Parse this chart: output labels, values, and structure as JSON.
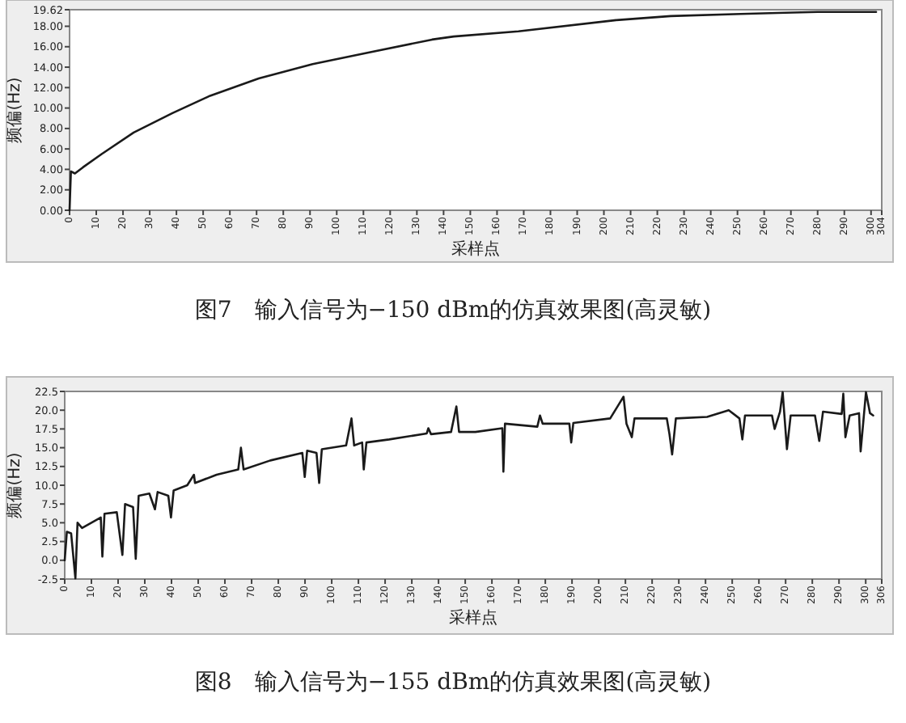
{
  "chart_data": [
    {
      "type": "line",
      "title": "图7　输入信号为−150 dBm的仿真效果图(高灵敏)",
      "xlabel": "采样点",
      "ylabel": "频偏(Hz)",
      "series": [
        {
          "color": "#1a1a1a",
          "x": [
            0,
            0.5,
            2,
            5,
            12,
            24,
            38.5,
            52.6,
            70.8,
            91,
            111.5,
            135.7,
            143.8,
            168,
            204.6,
            225,
            251.2,
            265,
            280,
            301.9
          ],
          "values": [
            0,
            3.8,
            3.6,
            4.2,
            5.5,
            7.6,
            9.5,
            11.2,
            12.9,
            14.3,
            15.4,
            16.7,
            17.0,
            17.5,
            18.6,
            19.0,
            19.2,
            19.3,
            19.4,
            19.4
          ]
        }
      ],
      "xlim": [
        0,
        304
      ],
      "xticks": [
        0,
        10,
        20,
        30,
        40,
        50,
        60,
        70,
        80,
        90,
        100,
        110,
        120,
        130,
        140,
        150,
        160,
        170,
        180,
        190,
        200,
        210,
        220,
        230,
        240,
        250,
        260,
        270,
        280,
        290,
        300,
        304
      ],
      "ylim": [
        0,
        19.62
      ],
      "yticks": [
        {
          "value": 0,
          "label": "0.00"
        },
        {
          "value": 2,
          "label": "2.00"
        },
        {
          "value": 4,
          "label": "4.00"
        },
        {
          "value": 6,
          "label": "6.00"
        },
        {
          "value": 8,
          "label": "8.00"
        },
        {
          "value": 10,
          "label": "10.00"
        },
        {
          "value": 12,
          "label": "12.00"
        },
        {
          "value": 14,
          "label": "14.00"
        },
        {
          "value": 16,
          "label": "16.00"
        },
        {
          "value": 18,
          "label": "18.00"
        },
        19.62
      ]
    },
    {
      "type": "line",
      "title": "图8　输入信号为−155 dBm的仿真效果图(高灵敏)",
      "xlabel": "采样点",
      "ylabel": "频偏(Hz)",
      "series": [
        {
          "color": "#1a1a1a",
          "x": [
            0,
            0.8,
            2.4,
            4,
            4.8,
            6.5,
            13.5,
            14.1,
            14.9,
            19.5,
            21.6,
            22.6,
            25.6,
            26.6,
            27.7,
            31.7,
            33.8,
            34.8,
            38.8,
            39.8,
            40.8,
            45.9,
            48.4,
            48.8,
            56.9,
            65,
            66,
            67,
            77,
            89,
            89.9,
            90.8,
            94.3,
            95.3,
            96.3,
            105.4,
            107.4,
            108.4,
            111.4,
            112,
            113,
            121.5,
            135.6,
            136.2,
            137.2,
            144.7,
            146.7,
            147.7,
            153.8,
            163.9,
            164.3,
            164.9,
            177,
            178,
            179,
            189,
            189.7,
            190.5,
            204.3,
            209.3,
            210.4,
            212.4,
            213.4,
            225.5,
            226.5,
            227.5,
            228.9,
            240.6,
            248.7,
            252.7,
            253.8,
            254.8,
            264.9,
            265.9,
            267.9,
            268.9,
            270.5,
            271.9,
            281,
            282.6,
            284,
            291,
            291.6,
            292.4,
            294,
            297.5,
            298.1,
            300.1,
            301.6,
            302.8
          ],
          "values": [
            0,
            3.8,
            3.6,
            -2.4,
            5.0,
            4.3,
            5.7,
            0.5,
            6.2,
            6.4,
            0.7,
            7.5,
            7.1,
            0.2,
            8.6,
            8.9,
            6.8,
            9.1,
            8.6,
            5.7,
            9.3,
            10.0,
            11.4,
            10.3,
            11.4,
            12.1,
            15.0,
            12.1,
            13.3,
            14.3,
            11.1,
            14.6,
            14.3,
            10.3,
            14.8,
            15.3,
            18.9,
            15.3,
            15.7,
            12.1,
            15.7,
            16.1,
            16.9,
            17.6,
            16.8,
            17.1,
            20.5,
            17.1,
            17.1,
            17.6,
            11.8,
            18.2,
            17.8,
            19.3,
            18.2,
            18.2,
            15.7,
            18.3,
            18.9,
            21.8,
            18.2,
            16.4,
            18.9,
            18.9,
            16.8,
            14.1,
            18.9,
            19.1,
            20.0,
            18.9,
            16.1,
            19.3,
            19.3,
            17.5,
            19.8,
            22.4,
            14.8,
            19.3,
            19.3,
            15.9,
            19.8,
            19.5,
            22.2,
            16.4,
            19.3,
            19.6,
            14.5,
            22.4,
            19.6,
            19.3
          ]
        }
      ],
      "xlim": [
        0,
        306
      ],
      "xticks": [
        0,
        10,
        20,
        30,
        40,
        50,
        60,
        70,
        80,
        90,
        100,
        110,
        120,
        130,
        140,
        150,
        160,
        170,
        180,
        190,
        200,
        210,
        220,
        230,
        240,
        250,
        260,
        270,
        280,
        290,
        300,
        306
      ],
      "ylim": [
        -2.5,
        22.5
      ],
      "yticks": [
        -2.5,
        {
          "value": 0,
          "label": "0.0"
        },
        2.5,
        {
          "value": 5,
          "label": "5.0"
        },
        7.5,
        {
          "value": 10,
          "label": "10.0"
        },
        12.5,
        {
          "value": 15,
          "label": "15.0"
        },
        17.5,
        {
          "value": 20,
          "label": "20.0"
        },
        22.5
      ]
    }
  ]
}
